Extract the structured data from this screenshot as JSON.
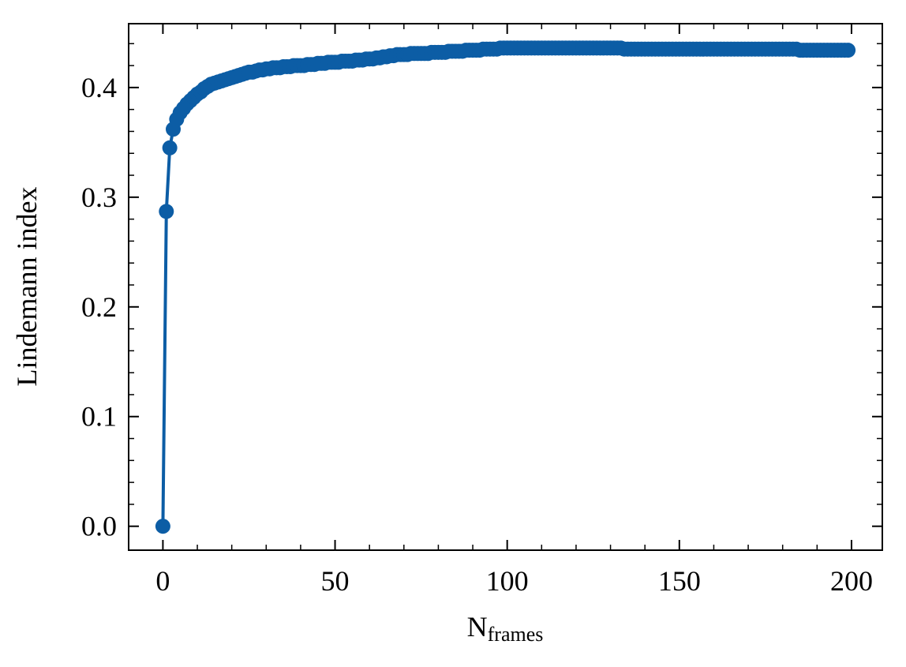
{
  "chart_data": {
    "type": "line",
    "xlabel": "N",
    "xlabel_sub": "frames",
    "ylabel": "Lindemann index",
    "color": "#0c5da5",
    "x": [
      0,
      1,
      2,
      3,
      4,
      5,
      6,
      7,
      8,
      9,
      10,
      11,
      12,
      13,
      14,
      15,
      16,
      17,
      18,
      19,
      20,
      21,
      22,
      23,
      24,
      25,
      26,
      27,
      28,
      29,
      30,
      31,
      32,
      33,
      34,
      35,
      36,
      37,
      38,
      39,
      40,
      41,
      42,
      43,
      44,
      45,
      46,
      47,
      48,
      49,
      50,
      51,
      52,
      53,
      54,
      55,
      56,
      57,
      58,
      59,
      60,
      61,
      62,
      63,
      64,
      65,
      66,
      67,
      68,
      69,
      70,
      71,
      72,
      73,
      74,
      75,
      76,
      77,
      78,
      79,
      80,
      81,
      82,
      83,
      84,
      85,
      86,
      87,
      88,
      89,
      90,
      91,
      92,
      93,
      94,
      95,
      96,
      97,
      98,
      99,
      100,
      101,
      102,
      103,
      104,
      105,
      106,
      107,
      108,
      109,
      110,
      111,
      112,
      113,
      114,
      115,
      116,
      117,
      118,
      119,
      120,
      121,
      122,
      123,
      124,
      125,
      126,
      127,
      128,
      129,
      130,
      131,
      132,
      133,
      134,
      135,
      136,
      137,
      138,
      139,
      140,
      141,
      142,
      143,
      144,
      145,
      146,
      147,
      148,
      149,
      150,
      151,
      152,
      153,
      154,
      155,
      156,
      157,
      158,
      159,
      160,
      161,
      162,
      163,
      164,
      165,
      166,
      167,
      168,
      169,
      170,
      171,
      172,
      173,
      174,
      175,
      176,
      177,
      178,
      179,
      180,
      181,
      182,
      183,
      184,
      185,
      186,
      187,
      188,
      189,
      190,
      191,
      192,
      193,
      194,
      195,
      196,
      197,
      198,
      199
    ],
    "values": [
      0,
      0.287,
      0.345,
      0.362,
      0.371,
      0.377,
      0.381,
      0.385,
      0.388,
      0.391,
      0.394,
      0.396,
      0.399,
      0.401,
      0.403,
      0.404,
      0.405,
      0.406,
      0.407,
      0.408,
      0.409,
      0.41,
      0.411,
      0.412,
      0.413,
      0.414,
      0.414,
      0.415,
      0.416,
      0.416,
      0.417,
      0.417,
      0.418,
      0.418,
      0.418,
      0.419,
      0.419,
      0.419,
      0.42,
      0.42,
      0.42,
      0.42,
      0.421,
      0.421,
      0.421,
      0.422,
      0.422,
      0.422,
      0.423,
      0.423,
      0.423,
      0.423,
      0.424,
      0.424,
      0.424,
      0.424,
      0.425,
      0.425,
      0.425,
      0.426,
      0.426,
      0.426,
      0.427,
      0.427,
      0.428,
      0.428,
      0.429,
      0.429,
      0.43,
      0.43,
      0.43,
      0.43,
      0.431,
      0.431,
      0.431,
      0.431,
      0.431,
      0.431,
      0.432,
      0.432,
      0.432,
      0.432,
      0.432,
      0.433,
      0.433,
      0.433,
      0.433,
      0.433,
      0.434,
      0.434,
      0.434,
      0.434,
      0.434,
      0.435,
      0.435,
      0.435,
      0.435,
      0.435,
      0.436,
      0.436,
      0.436,
      0.436,
      0.436,
      0.436,
      0.436,
      0.436,
      0.436,
      0.436,
      0.436,
      0.436,
      0.436,
      0.436,
      0.436,
      0.436,
      0.436,
      0.436,
      0.436,
      0.436,
      0.436,
      0.436,
      0.436,
      0.436,
      0.436,
      0.436,
      0.436,
      0.436,
      0.436,
      0.436,
      0.436,
      0.436,
      0.436,
      0.436,
      0.436,
      0.436,
      0.435,
      0.435,
      0.435,
      0.435,
      0.435,
      0.435,
      0.435,
      0.435,
      0.435,
      0.435,
      0.435,
      0.435,
      0.435,
      0.435,
      0.435,
      0.435,
      0.435,
      0.435,
      0.435,
      0.435,
      0.435,
      0.435,
      0.435,
      0.435,
      0.435,
      0.435,
      0.435,
      0.435,
      0.435,
      0.435,
      0.435,
      0.435,
      0.435,
      0.435,
      0.435,
      0.435,
      0.435,
      0.435,
      0.435,
      0.435,
      0.435,
      0.435,
      0.435,
      0.435,
      0.435,
      0.435,
      0.435,
      0.435,
      0.435,
      0.435,
      0.435,
      0.434,
      0.434,
      0.434,
      0.434,
      0.434,
      0.434,
      0.434,
      0.434,
      0.434,
      0.434,
      0.434,
      0.434,
      0.434,
      0.434,
      0.434
    ],
    "xlim": [
      -9.95,
      208.95
    ],
    "ylim": [
      -0.0218,
      0.4582
    ],
    "xticks": [
      0,
      50,
      100,
      150,
      200
    ],
    "yticks": [
      {
        "value": 0,
        "label": "0.0"
      },
      0.1,
      0.2,
      0.3,
      0.4
    ],
    "minor_xticks": [
      10,
      20,
      30,
      40,
      60,
      70,
      80,
      90,
      110,
      120,
      130,
      140,
      160,
      170,
      180,
      190
    ],
    "minor_yticks": [
      0.02,
      0.04,
      0.06,
      0.08,
      0.12,
      0.14,
      0.16,
      0.18,
      0.22,
      0.24,
      0.26,
      0.28,
      0.32,
      0.34,
      0.36,
      0.38,
      0.42,
      0.44
    ]
  }
}
